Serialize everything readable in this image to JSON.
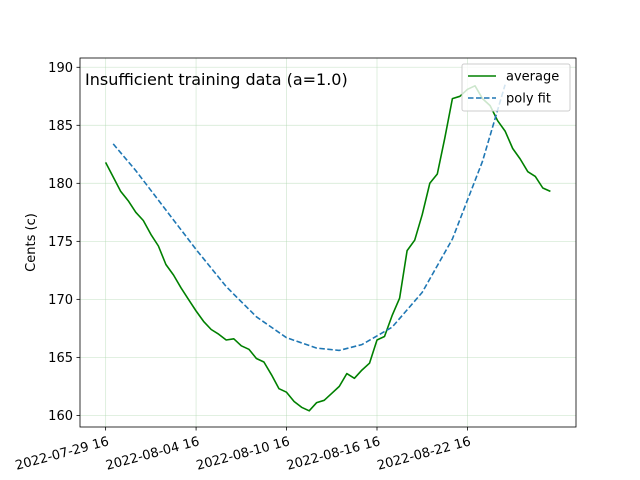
{
  "chart_data": {
    "type": "line",
    "title": "",
    "annotation": "Insufficient training data (a=1.0)",
    "xlabel": "",
    "ylabel": "Cents (c)",
    "x_ticks": [
      "2022-07-29 16",
      "2022-08-04 16",
      "2022-08-10 16",
      "2022-08-16 16",
      "2022-08-22 16"
    ],
    "x_tick_days": [
      0,
      6,
      12,
      18,
      24
    ],
    "y_ticks": [
      160,
      165,
      170,
      175,
      180,
      185,
      190
    ],
    "xlim": [
      -1.7,
      31.2
    ],
    "ylim": [
      159.0,
      190.8
    ],
    "grid": true,
    "legend_position": "top-right",
    "series": [
      {
        "name": "average",
        "style": "solid",
        "color": "#008000",
        "x": [
          0,
          1,
          1.5,
          2,
          2.5,
          3,
          3.5,
          4,
          4.5,
          5,
          5.5,
          6,
          6.5,
          7,
          7.5,
          8,
          8.5,
          9,
          9.5,
          10,
          10.5,
          11,
          11.5,
          12,
          12.5,
          13,
          13.5,
          14,
          14.5,
          15,
          15.5,
          16,
          16.5,
          17,
          17.5,
          18,
          18.5,
          19,
          19.5,
          20,
          20.5,
          21,
          21.5,
          22,
          22.5,
          23,
          23.5,
          24,
          24.5,
          25,
          25.5,
          26,
          26.5,
          27,
          27.5,
          28,
          28.5,
          29,
          29.5
        ],
        "y": [
          181.8,
          179.3,
          178.5,
          177.5,
          176.8,
          175.6,
          174.6,
          173.0,
          172.1,
          171.0,
          170.0,
          169.0,
          168.1,
          167.4,
          167.0,
          166.5,
          166.6,
          166.0,
          165.7,
          164.9,
          164.6,
          163.5,
          162.3,
          162.0,
          161.2,
          160.7,
          160.4,
          161.1,
          161.3,
          161.9,
          162.5,
          163.6,
          163.2,
          163.9,
          164.5,
          166.5,
          166.8,
          168.6,
          170.1,
          174.2,
          175.1,
          177.3,
          180.0,
          180.8,
          183.9,
          187.3,
          187.5,
          188.1,
          188.4,
          187.3,
          186.7,
          185.4,
          184.5,
          183.0,
          182.1,
          181.0,
          180.6,
          179.6,
          179.3
        ]
      },
      {
        "name": "poly fit",
        "style": "dashed",
        "color": "#1f77b4",
        "x": [
          0.5,
          2,
          4,
          6,
          8,
          10,
          12,
          14,
          15.5,
          17,
          19,
          21,
          23,
          25,
          26.5
        ],
        "y": [
          183.4,
          181.1,
          177.7,
          174.3,
          171.1,
          168.5,
          166.7,
          165.8,
          165.6,
          166.1,
          167.6,
          170.6,
          175.2,
          181.9,
          188.5
        ]
      }
    ]
  }
}
